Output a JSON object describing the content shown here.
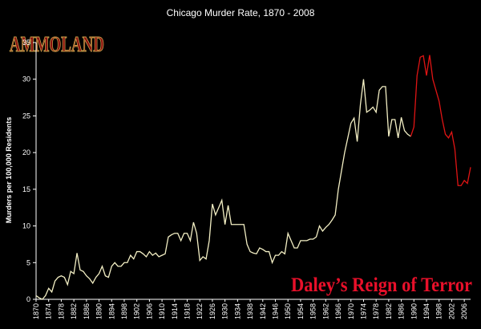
{
  "chart_data": {
    "type": "line",
    "title": "Chicago Murder Rate, 1870 - 2008",
    "y_label": "Murders per 100,000 Residents",
    "logo": "AMMOLAND",
    "annotation": "Daley’s Reign of Terror",
    "xlim": [
      1870,
      2008
    ],
    "xticks": [
      1870,
      1874,
      1878,
      1882,
      1886,
      1890,
      1894,
      1898,
      1902,
      1906,
      1910,
      1914,
      1918,
      1922,
      1926,
      1930,
      1934,
      1938,
      1942,
      1946,
      1950,
      1954,
      1958,
      1962,
      1966,
      1970,
      1974,
      1978,
      1982,
      1986,
      1990,
      1994,
      1998,
      2002,
      2006
    ],
    "ylim": [
      0,
      35
    ],
    "yticks": [
      0,
      5,
      10,
      15,
      20,
      25,
      30,
      35
    ],
    "grid": false,
    "series": [
      {
        "color": "#f3efc4",
        "x": [
          1870,
          1871,
          1872,
          1873,
          1874,
          1875,
          1876,
          1877,
          1878,
          1879,
          1880,
          1881,
          1882,
          1883,
          1884,
          1885,
          1886,
          1887,
          1888,
          1889,
          1890,
          1891,
          1892,
          1893,
          1894,
          1895,
          1896,
          1897,
          1898,
          1899,
          1900,
          1901,
          1902,
          1903,
          1904,
          1905,
          1906,
          1907,
          1908,
          1909,
          1910,
          1911,
          1912,
          1913,
          1914,
          1915,
          1916,
          1917,
          1918,
          1919,
          1920,
          1921,
          1922,
          1923,
          1924,
          1925,
          1926,
          1927,
          1928,
          1929,
          1930,
          1931,
          1932,
          1933,
          1934,
          1935,
          1936,
          1937,
          1938,
          1939,
          1940,
          1941,
          1942,
          1943,
          1944,
          1945,
          1946,
          1947,
          1948,
          1949,
          1950,
          1951,
          1952,
          1953,
          1954,
          1955,
          1956,
          1957,
          1958,
          1959,
          1960,
          1961,
          1962,
          1963,
          1964,
          1965,
          1966,
          1967,
          1968,
          1969,
          1970,
          1971,
          1972,
          1973,
          1974,
          1975,
          1976,
          1977,
          1978,
          1979,
          1980,
          1981,
          1982,
          1983,
          1984,
          1985,
          1986,
          1987,
          1988,
          1989
        ],
        "values": [
          0.5,
          0.2,
          0,
          0.5,
          1.5,
          1,
          2.5,
          3,
          3.2,
          3,
          2,
          3.8,
          3.5,
          6.3,
          4,
          3.8,
          3.2,
          2.8,
          2.2,
          3,
          3.5,
          4.5,
          3.2,
          3,
          4.5,
          5,
          4.5,
          4.5,
          5,
          5,
          6,
          5.5,
          6.5,
          6.5,
          6.2,
          5.8,
          6.5,
          6,
          6.3,
          5.8,
          6,
          6.2,
          8.5,
          8.8,
          9,
          9,
          8,
          9,
          9,
          8,
          10.5,
          9,
          5.3,
          5.8,
          5.5,
          8,
          13,
          11.5,
          12.5,
          13.5,
          10.2,
          12.8,
          10.2,
          10.2,
          10.2,
          10.2,
          10.2,
          7.5,
          6.5,
          6.3,
          6.2,
          7,
          6.8,
          6.5,
          6.5,
          5,
          6,
          6,
          6.5,
          6.2,
          9,
          8,
          7,
          7,
          8,
          8,
          8,
          8.2,
          8.2,
          8.5,
          10,
          9.3,
          9.8,
          10.2,
          10.8,
          11.5,
          15,
          17.5,
          20,
          22,
          24,
          24.7,
          21.5,
          26.5,
          30,
          25.5,
          25.8,
          26.2,
          25.5,
          28.5,
          29,
          29,
          22.2,
          24.5,
          24.5,
          22,
          24.8,
          23,
          22.5,
          22.2
        ]
      },
      {
        "color": "#e01414",
        "x": [
          1989,
          1990,
          1991,
          1992,
          1993,
          1994,
          1995,
          1996,
          1997,
          1998,
          1999,
          2000,
          2001,
          2002,
          2003,
          2004,
          2005,
          2006,
          2007,
          2008
        ],
        "values": [
          22.2,
          23.5,
          30.5,
          33,
          33.2,
          30.5,
          33.3,
          30,
          28.5,
          27,
          24.5,
          22.5,
          22,
          22.8,
          20.5,
          15.5,
          15.5,
          16.2,
          15.8,
          18
        ]
      }
    ]
  }
}
